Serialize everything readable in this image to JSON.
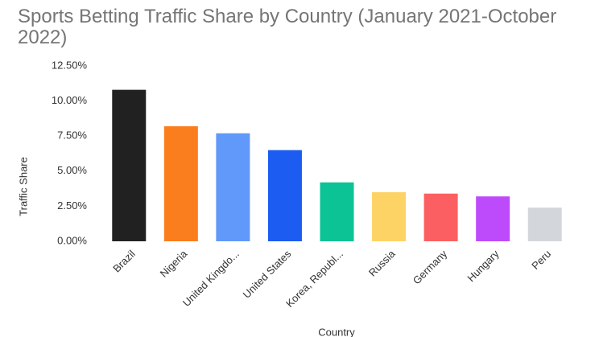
{
  "chart_data": {
    "type": "bar",
    "title": "Sports Betting Traffic Share by Country (January 2021-October 2022)",
    "x_label": "Country",
    "y_label": "Traffic Share",
    "categories": [
      "Brazil",
      "Nigeria",
      "United Kingdo...",
      "United States",
      "Korea, Republ...",
      "Russia",
      "Germany",
      "Hungary",
      "Peru"
    ],
    "values": [
      10.8,
      8.2,
      7.7,
      6.5,
      4.2,
      3.5,
      3.4,
      3.2,
      2.4
    ],
    "colors": [
      "#212121",
      "#fa7d1e",
      "#6199fa",
      "#1c5cf0",
      "#0bc394",
      "#fdd365",
      "#fc5f61",
      "#be4bfb",
      "#d3d6da"
    ],
    "ylim": [
      0,
      12.5
    ],
    "yticks": [
      {
        "value": 0,
        "label": "0.00%"
      },
      {
        "value": 2.5,
        "label": "2.50%"
      },
      {
        "value": 5,
        "label": "5.00%"
      },
      {
        "value": 7.5,
        "label": "7.50%"
      },
      {
        "value": 10,
        "label": "10.00%"
      },
      {
        "value": 12.5,
        "label": "12.50%"
      }
    ],
    "grid": false
  }
}
